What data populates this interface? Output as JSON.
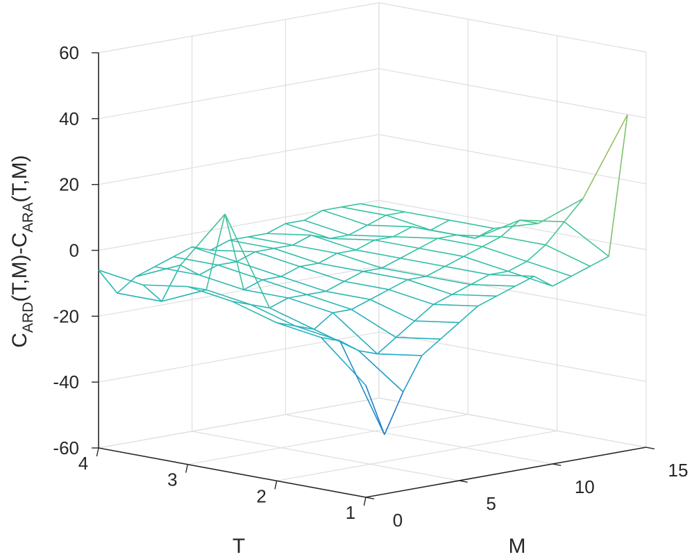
{
  "chart_data": {
    "type": "surface-mesh",
    "xlabel": "T",
    "ylabel": "M",
    "zlabel": {
      "parts": [
        {
          "text": "C",
          "sub": false
        },
        {
          "text": "ARD",
          "sub": true
        },
        {
          "text": "(T,M)-C",
          "sub": false
        },
        {
          "text": "ARA",
          "sub": true
        },
        {
          "text": "(T,M)",
          "sub": false
        }
      ]
    },
    "x_ticks": [
      "1",
      "2",
      "3",
      "4"
    ],
    "y_ticks": [
      "0",
      "5",
      "10",
      "15"
    ],
    "z_ticks": [
      "-60",
      "-40",
      "-20",
      "0",
      "20",
      "40",
      "60"
    ],
    "xlim": [
      1,
      4
    ],
    "ylim": [
      0,
      15
    ],
    "zlim": [
      -60,
      60
    ],
    "grid": true,
    "colormap": [
      "#1e64c8",
      "#21a8c8",
      "#35c3a0",
      "#7dc06d",
      "#c6b84a"
    ],
    "T_values": [
      1,
      1.5,
      2,
      2.5,
      3,
      3.5,
      4
    ],
    "M_values": [
      0,
      1,
      2,
      3,
      4,
      5,
      6,
      7,
      8,
      9,
      10,
      11,
      12,
      13,
      14
    ],
    "Z": [
      [
        -26,
        -42,
        -30,
        -20,
        -16,
        -12,
        -8,
        -6,
        -4,
        -2,
        -6,
        -4,
        -2,
        0,
        42
      ],
      [
        -14,
        -16,
        -20,
        -22,
        -18,
        -14,
        -10,
        -8,
        -6,
        -4,
        -4,
        -2,
        2,
        8,
        14
      ],
      [
        -12,
        -14,
        -16,
        -12,
        -12,
        -10,
        -8,
        -6,
        -6,
        -4,
        -2,
        0,
        2,
        6,
        4
      ],
      [
        -8,
        -10,
        -12,
        -10,
        -10,
        -10,
        -8,
        -6,
        -6,
        -4,
        -2,
        0,
        0,
        -2,
        0
      ],
      [
        -6,
        -8,
        14,
        -10,
        -8,
        -8,
        -6,
        -6,
        -4,
        -4,
        -2,
        -2,
        0,
        -2,
        0
      ],
      [
        -8,
        -14,
        -4,
        -8,
        -6,
        -6,
        -4,
        -4,
        -4,
        -2,
        -4,
        -4,
        -2,
        0,
        0
      ],
      [
        -6,
        -14,
        -10,
        -8,
        -6,
        -4,
        -6,
        -4,
        -4,
        -4,
        -2,
        -2,
        0,
        0,
        0
      ]
    ]
  }
}
